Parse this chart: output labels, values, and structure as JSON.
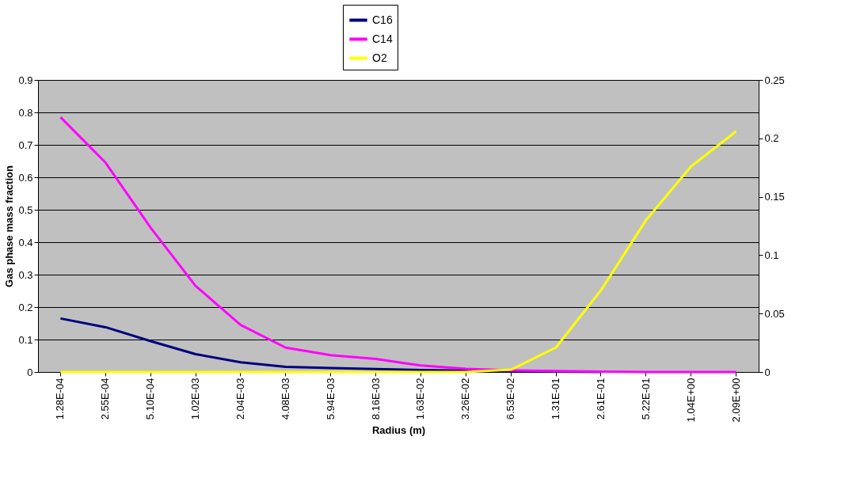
{
  "chart_data": {
    "type": "line",
    "xlabel": "Radius (m)",
    "ylabel": "Gas phase mass fraction",
    "categories": [
      "1.28E-04",
      "2.55E-04",
      "5.10E-04",
      "1.02E-03",
      "2.04E-03",
      "4.08E-03",
      "5.94E-03",
      "8.16E-03",
      "1.63E-02",
      "3.26E-02",
      "6.53E-02",
      "1.31E-01",
      "2.61E-01",
      "5.22E-01",
      "1.04E+00",
      "2.09E+00"
    ],
    "series": [
      {
        "name": "C16",
        "color": "#000080",
        "values": [
          0.165,
          0.138,
          0.095,
          0.055,
          0.03,
          0.016,
          0.012,
          0.009,
          0.006,
          0.004,
          0.002,
          0.001,
          0,
          null,
          null,
          null
        ]
      },
      {
        "name": "C14",
        "color": "#ff00ff",
        "values": [
          0.785,
          0.645,
          0.445,
          0.265,
          0.145,
          0.075,
          0.052,
          0.04,
          0.02,
          0.01,
          0.005,
          0.003,
          0.001,
          0,
          0,
          0
        ]
      },
      {
        "name": "O2",
        "color": "#ffff00",
        "axis": "y2",
        "values": [
          0,
          0,
          0,
          0,
          0,
          0,
          0,
          0,
          0,
          0,
          0.002,
          0.021,
          0.07,
          0.13,
          0.176,
          0.206
        ]
      }
    ],
    "ylim": [
      0,
      0.9
    ],
    "yticks": [
      0,
      0.1,
      0.2,
      0.3,
      0.4,
      0.5,
      0.6,
      0.7,
      0.8,
      0.9
    ],
    "y2lim": [
      0,
      0.25
    ],
    "y2ticks": [
      0,
      0.05,
      0.1,
      0.15,
      0.2,
      0.25
    ],
    "grid": "y",
    "legend": "top",
    "marker": "none",
    "line_style": "solid"
  }
}
